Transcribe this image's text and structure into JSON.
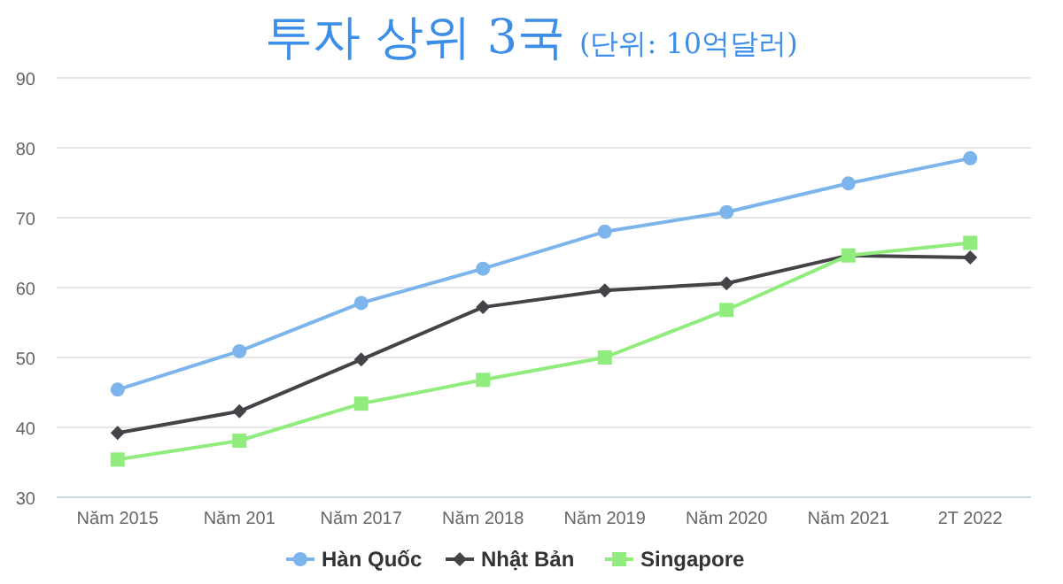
{
  "chart_data": {
    "type": "line",
    "title": "투자 상위 3국",
    "subtitle": "(단위: 10억달러)",
    "categories": [
      "Năm 2015",
      "Năm 201",
      "Năm 2017",
      "Năm 2018",
      "Năm 2019",
      "Năm 2020",
      "Năm 2021",
      "2T 2022"
    ],
    "series": [
      {
        "name": "Hàn Quốc",
        "color": "#7cb5ec",
        "marker": "circle",
        "values": [
          45.4,
          50.9,
          57.8,
          62.7,
          68.0,
          70.8,
          74.9,
          78.5
        ]
      },
      {
        "name": "Nhật Bản",
        "color": "#434348",
        "marker": "diamond",
        "values": [
          39.2,
          42.3,
          49.7,
          57.2,
          59.6,
          60.6,
          64.6,
          64.3
        ]
      },
      {
        "name": "Singapore",
        "color": "#90ed7d",
        "marker": "square",
        "values": [
          35.4,
          38.1,
          43.4,
          46.8,
          50.0,
          56.8,
          64.6,
          66.4
        ]
      }
    ],
    "ylim": [
      30,
      90
    ],
    "yticks": [
      30,
      40,
      50,
      60,
      70,
      80,
      90
    ],
    "grid": "y",
    "legend": "bottom"
  }
}
